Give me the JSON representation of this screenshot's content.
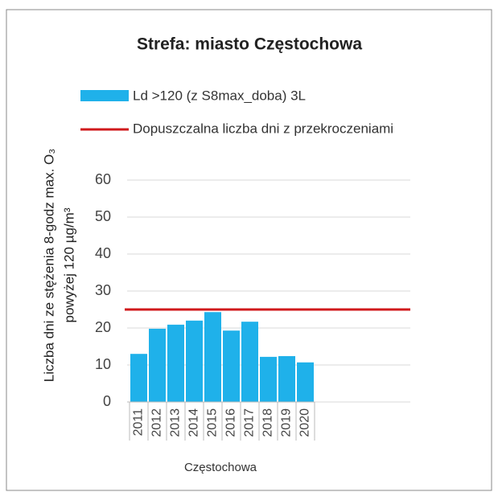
{
  "chart_data": {
    "type": "bar",
    "title": "Strefa: miasto Częstochowa",
    "y_label_lines": [
      "Liczba dni ze stężenia 8-godz max. O₃",
      "powyżej 120 µg/m³"
    ],
    "x_label": "Częstochowa",
    "categories": [
      "2011",
      "2012",
      "2013",
      "2014",
      "2015",
      "2016",
      "2017",
      "2018",
      "2019",
      "2020"
    ],
    "series": [
      {
        "name": "Ld >120 (z S8max_doba) 3L",
        "color": "#1fb1ea",
        "values": [
          13,
          19.8,
          20.9,
          22,
          24.3,
          19.3,
          21.7,
          12.2,
          12.4,
          10.7
        ]
      }
    ],
    "reference_line": {
      "name": "Dopuszczalna liczba dni z przekroczeniami",
      "color": "#d0191c",
      "value": 25
    },
    "ylim": [
      0,
      60
    ],
    "yticks": [
      0,
      10,
      20,
      30,
      40,
      50,
      60
    ],
    "grid": true
  }
}
